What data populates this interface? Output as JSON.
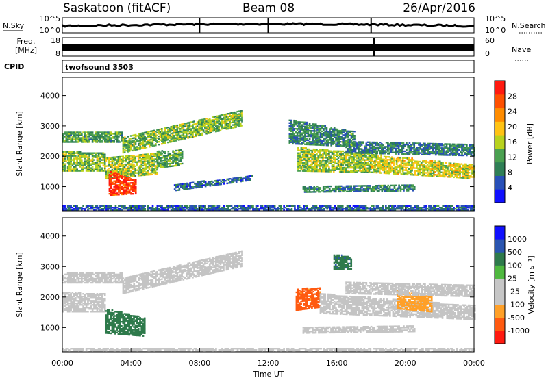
{
  "header": {
    "station": "Saskatoon (fitACF)",
    "beam": "Beam 08",
    "date": "26/Apr/2016"
  },
  "noise_panel": {
    "left_label": "N.Sky",
    "left_ticks": [
      "10^5",
      "10^0"
    ],
    "right_label": "N.Search",
    "right_ticks": [
      "10^5",
      "10^0"
    ]
  },
  "freq_panel": {
    "left_label_line1": "Freq.",
    "left_label_line2": "[MHz]",
    "left_ticks": [
      "18",
      "8"
    ],
    "right_label": "Nave",
    "right_ticks": [
      "60",
      "0"
    ]
  },
  "cpid": {
    "label": "CPID",
    "value": "twofsound 3503"
  },
  "colors": {
    "power_scale": [
      "#1010ff",
      "#2850b8",
      "#2f7f56",
      "#4aa050",
      "#b8d21e",
      "#ffc314",
      "#ff8c00",
      "#ff5000",
      "#ff1a10"
    ],
    "velocity_scale": [
      "#ff1a10",
      "#ff5a10",
      "#ffa028",
      "#c6c6c6",
      "#c6c6c6",
      "#4fb83f",
      "#2e7a4b",
      "#2a55b0",
      "#1010ff"
    ],
    "ground_scatter": "#c4c4c4"
  },
  "chart_data": [
    {
      "type": "heatmap",
      "name": "power",
      "ylabel": "Slant Range [km]",
      "yticks": [
        "1000",
        "2000",
        "3000",
        "4000"
      ],
      "ylim": [
        200,
        4600
      ],
      "xlim": [
        0,
        24
      ],
      "colorbar_label": "Power [dB]",
      "colorbar_ticks": [
        "4",
        "8",
        "12",
        "16",
        "20",
        "24",
        "28"
      ],
      "colorbar_range": [
        0,
        30
      ],
      "bands": [
        {
          "t0": 0.0,
          "t1": 2.5,
          "r0": 1500,
          "r1": 2150,
          "r0e": 1500,
          "r1e": 2100,
          "v": 13
        },
        {
          "t0": 2.5,
          "t1": 5.5,
          "r0": 1250,
          "r1": 1950,
          "r0e": 1400,
          "r1e": 2100,
          "v": 14
        },
        {
          "t0": 5.5,
          "t1": 7.0,
          "r0": 1600,
          "r1": 2150,
          "r0e": 1700,
          "r1e": 2200,
          "v": 11
        },
        {
          "t0": 0.0,
          "t1": 3.5,
          "r0": 2450,
          "r1": 2800,
          "r0e": 2450,
          "r1e": 2800,
          "v": 11
        },
        {
          "t0": 3.5,
          "t1": 10.5,
          "r0": 2100,
          "r1": 2600,
          "r0e": 3000,
          "r1e": 3500,
          "v": 13
        },
        {
          "t0": 2.7,
          "t1": 4.3,
          "r0": 700,
          "r1": 1500,
          "r0e": 750,
          "r1e": 1200,
          "v": 27
        },
        {
          "t0": 13.7,
          "t1": 18.0,
          "r0": 1500,
          "r1": 2300,
          "r0e": 1450,
          "r1e": 2050,
          "v": 14
        },
        {
          "t0": 18.0,
          "t1": 24.0,
          "r0": 1450,
          "r1": 2050,
          "r0e": 1250,
          "r1e": 1700,
          "v": 16
        },
        {
          "t0": 14.0,
          "t1": 20.5,
          "r0": 800,
          "r1": 1000,
          "r0e": 850,
          "r1e": 1050,
          "v": 9
        },
        {
          "t0": 16.5,
          "t1": 24.0,
          "r0": 2100,
          "r1": 2500,
          "r0e": 2000,
          "r1e": 2400,
          "v": 8
        },
        {
          "t0": 13.2,
          "t1": 17.0,
          "r0": 2400,
          "r1": 3200,
          "r0e": 2300,
          "r1e": 2800,
          "v": 9
        },
        {
          "t0": 6.5,
          "t1": 11.0,
          "r0": 850,
          "r1": 1050,
          "r0e": 1200,
          "r1e": 1350,
          "v": 7
        },
        {
          "t0": 0.0,
          "t1": 24.0,
          "r0": 200,
          "r1": 360,
          "r0e": 200,
          "r1e": 360,
          "v": 6
        }
      ]
    },
    {
      "type": "heatmap",
      "name": "velocity",
      "ylabel": "Slant Range [km]",
      "yticks": [
        "1000",
        "2000",
        "3000",
        "4000"
      ],
      "ylim": [
        200,
        4600
      ],
      "xlim": [
        0,
        24
      ],
      "xlabel": "Time UT",
      "xticks": [
        "00:00",
        "04:00",
        "08:00",
        "12:00",
        "16:00",
        "20:00",
        "00:00"
      ],
      "colorbar_label": "Velocity [m s⁻¹]",
      "colorbar_ticks": [
        "-1000",
        "-500",
        "-100",
        "-25",
        "25",
        "100",
        "500",
        "1000"
      ],
      "bands": [
        {
          "t0": 0.0,
          "t1": 2.5,
          "r0": 1500,
          "r1": 2150,
          "r0e": 1500,
          "r1e": 2100,
          "v": "gs"
        },
        {
          "t0": 2.5,
          "t1": 4.8,
          "r0": 800,
          "r1": 1600,
          "r0e": 700,
          "r1e": 1300,
          "v": 250
        },
        {
          "t0": 0.0,
          "t1": 3.5,
          "r0": 2450,
          "r1": 2800,
          "r0e": 2450,
          "r1e": 2800,
          "v": "gs"
        },
        {
          "t0": 3.5,
          "t1": 10.5,
          "r0": 2100,
          "r1": 2600,
          "r0e": 3000,
          "r1e": 3500,
          "v": "gs"
        },
        {
          "t0": 13.6,
          "t1": 15.0,
          "r0": 1550,
          "r1": 2250,
          "r0e": 1650,
          "r1e": 2300,
          "v": -700
        },
        {
          "t0": 15.0,
          "t1": 24.0,
          "r0": 1450,
          "r1": 2100,
          "r0e": 1250,
          "r1e": 1700,
          "v": "gs"
        },
        {
          "t0": 19.5,
          "t1": 21.5,
          "r0": 1600,
          "r1": 2200,
          "r0e": 1500,
          "r1e": 2000,
          "v": -200
        },
        {
          "t0": 16.5,
          "t1": 24.0,
          "r0": 2100,
          "r1": 2500,
          "r0e": 2000,
          "r1e": 2400,
          "v": "gs"
        },
        {
          "t0": 15.8,
          "t1": 16.8,
          "r0": 2900,
          "r1": 3400,
          "r0e": 2900,
          "r1e": 3300,
          "v": 400
        },
        {
          "t0": 14.0,
          "t1": 20.5,
          "r0": 800,
          "r1": 1000,
          "r0e": 850,
          "r1e": 1050,
          "v": "gs"
        },
        {
          "t0": 0.0,
          "t1": 24.0,
          "r0": 200,
          "r1": 330,
          "r0e": 200,
          "r1e": 330,
          "v": -60
        }
      ]
    }
  ]
}
